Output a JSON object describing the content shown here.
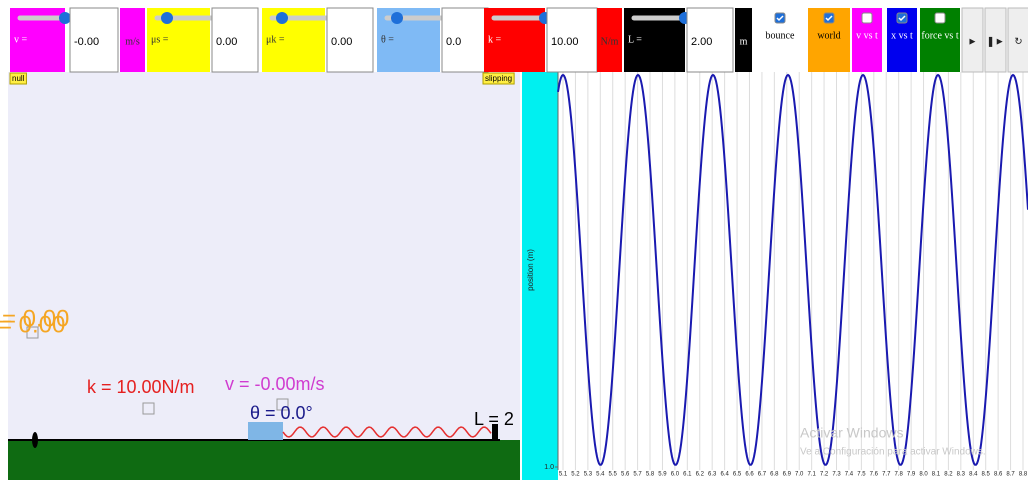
{
  "toolbar": {
    "controls": [
      {
        "label": "v =",
        "value": "-0.00",
        "unit": "m/s"
      },
      {
        "label": "μs =",
        "value": "0.00"
      },
      {
        "label": "μk =",
        "value": "0.00"
      },
      {
        "label": "θ =",
        "value": "0.0"
      },
      {
        "label": "k =",
        "value": "10.00",
        "unit": "N/m"
      },
      {
        "label": "L =",
        "value": "2.00",
        "unit": "m"
      }
    ],
    "checkboxes": [
      {
        "label": "bounce",
        "checked": true
      },
      {
        "label": "world",
        "checked": true
      },
      {
        "label": "v vs t",
        "checked": false
      },
      {
        "label": "x vs t",
        "checked": true
      },
      {
        "label": "force vs t",
        "checked": false
      }
    ],
    "buttons": [
      "►",
      "❚►",
      "↻"
    ]
  },
  "simulation": {
    "status_left": "null",
    "status_right": "slipping",
    "k_label": "k = 10.00N/m",
    "v_label": "v = -0.00m/s",
    "theta_label": "θ = 0.0°",
    "length_label": "L = 2",
    "overlay_labels": [
      "= 0.00",
      "= 0.00"
    ]
  },
  "graph": {
    "y_axis_label": "position (m)",
    "yticks": [
      {
        "value": 1,
        "label": "1.0"
      }
    ],
    "xticks": [
      5.1,
      5.2,
      5.3,
      5.4,
      5.5,
      5.6,
      5.7,
      5.8,
      5.9,
      {
        "value": 6,
        "label": "6.0"
      },
      6.1,
      6.2,
      6.3,
      6.4,
      6.5,
      6.6,
      6.7,
      6.8,
      6.9,
      {
        "value": 7,
        "label": "7.0"
      },
      7.1,
      7.2,
      7.3,
      7.4,
      7.5,
      7.6,
      7.7,
      7.8,
      7.9,
      {
        "value": 8,
        "label": "8.0"
      },
      8.1,
      8.2,
      8.3,
      8.4,
      8.5,
      8.6,
      8.7,
      8.8
    ]
  },
  "watermark": {
    "title": "Activar Windows",
    "subtitle": "Ve a Configuración para activar Windows."
  }
}
